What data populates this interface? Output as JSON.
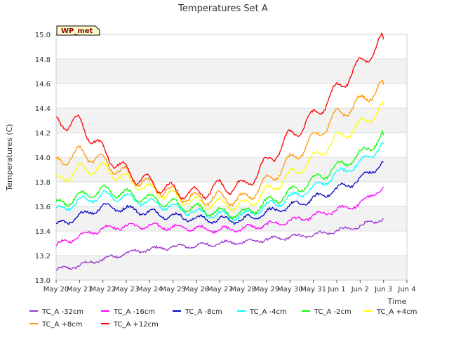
{
  "chart_data": {
    "type": "line",
    "title": "Temperatures Set A",
    "xlabel": "Time",
    "ylabel": "Temperatures (C)",
    "badge": "WP_met",
    "ylim": [
      13.0,
      15.0
    ],
    "yticks": [
      "13.0",
      "13.2",
      "13.4",
      "13.6",
      "13.8",
      "14.0",
      "14.2",
      "14.4",
      "14.6",
      "14.8",
      "15.0"
    ],
    "xticks": [
      "May 20",
      "May 21",
      "May 22",
      "May 23",
      "May 24",
      "May 25",
      "May 26",
      "May 27",
      "May 28",
      "May 29",
      "May 30",
      "May 31",
      "Jun 1",
      "Jun 2",
      "Jun 3",
      "Jun 4"
    ],
    "x": [
      "May 20",
      "May 21",
      "May 22",
      "May 23",
      "May 24",
      "May 25",
      "May 26",
      "May 27",
      "May 28",
      "May 29",
      "May 30",
      "May 31",
      "Jun 1",
      "Jun 2",
      "Jun 3"
    ],
    "grid": true,
    "legend_position": "bottom",
    "series": [
      {
        "name": "TC_A -32cm",
        "color": "#9933cc",
        "values": [
          13.08,
          13.12,
          13.17,
          13.22,
          13.25,
          13.27,
          13.28,
          13.3,
          13.31,
          13.33,
          13.35,
          13.37,
          13.4,
          13.44,
          13.5
        ]
      },
      {
        "name": "TC_A -16cm",
        "color": "#ff00ff",
        "values": [
          13.28,
          13.36,
          13.42,
          13.44,
          13.44,
          13.43,
          13.42,
          13.41,
          13.42,
          13.45,
          13.48,
          13.52,
          13.57,
          13.62,
          13.76
        ]
      },
      {
        "name": "TC_A -8cm",
        "color": "#0000cc",
        "values": [
          13.44,
          13.52,
          13.6,
          13.58,
          13.55,
          13.52,
          13.5,
          13.49,
          13.49,
          13.55,
          13.6,
          13.66,
          13.74,
          13.82,
          13.96
        ]
      },
      {
        "name": "TC_A -4cm",
        "color": "#00ffff",
        "values": [
          13.56,
          13.64,
          13.69,
          13.67,
          13.63,
          13.59,
          13.55,
          13.53,
          13.52,
          13.6,
          13.67,
          13.75,
          13.86,
          13.95,
          14.11
        ]
      },
      {
        "name": "TC_A -2cm",
        "color": "#00ff00",
        "values": [
          13.61,
          13.68,
          13.73,
          13.7,
          13.66,
          13.62,
          13.58,
          13.55,
          13.54,
          13.63,
          13.71,
          13.81,
          13.92,
          14.02,
          14.18
        ]
      },
      {
        "name": "TC_A +4cm",
        "color": "#ffff00",
        "values": [
          13.8,
          13.9,
          13.91,
          13.82,
          13.74,
          13.68,
          13.63,
          13.62,
          13.6,
          13.72,
          13.85,
          13.99,
          14.15,
          14.26,
          14.42
        ]
      },
      {
        "name": "TC_A +8cm",
        "color": "#ff9900",
        "values": [
          13.95,
          14.04,
          13.97,
          13.86,
          13.77,
          13.71,
          13.66,
          13.67,
          13.65,
          13.8,
          13.97,
          14.15,
          14.34,
          14.45,
          14.59
        ]
      },
      {
        "name": "TC_A +12cm",
        "color": "#ff0000",
        "values": [
          14.28,
          14.28,
          14.05,
          13.88,
          13.79,
          13.73,
          13.7,
          13.76,
          13.76,
          13.95,
          14.17,
          14.33,
          14.55,
          14.76,
          14.96
        ]
      }
    ]
  }
}
